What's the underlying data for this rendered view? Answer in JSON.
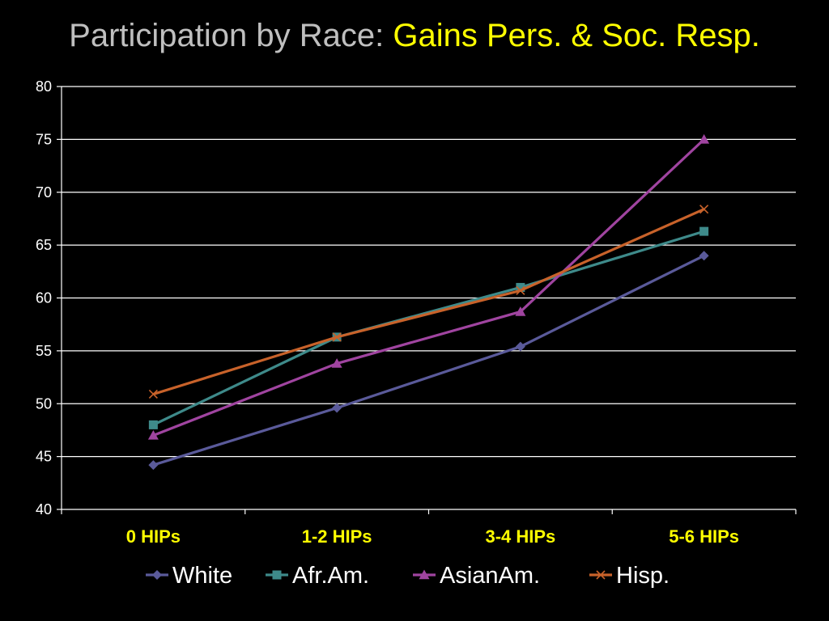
{
  "slide": {
    "title_main": "Participation by Race: ",
    "title_accent": "Gains Pers. & Soc. Resp."
  },
  "colors": {
    "background": "#000000",
    "title_main": "#bfbfbf",
    "title_accent": "#ffff00",
    "x_tick_labels": "#ffff00",
    "axis_text": "#ffffff",
    "gridlines": "#ffffff"
  },
  "chart_data": {
    "type": "line",
    "title": "Participation by Race: Gains Pers. & Soc. Resp.",
    "xlabel": "",
    "ylabel": "",
    "categories": [
      "0 HIPs",
      "1-2 HIPs",
      "3-4 HIPs",
      "5-6 HIPs"
    ],
    "ylim": [
      40,
      80
    ],
    "yticks": [
      40,
      45,
      50,
      55,
      60,
      65,
      70,
      75,
      80
    ],
    "grid": true,
    "legend_position": "bottom",
    "series": [
      {
        "name": "White",
        "values": [
          44.2,
          49.6,
          55.4,
          64.0
        ],
        "color": "#5a5a9a",
        "marker": "diamond"
      },
      {
        "name": "Afr.Am.",
        "values": [
          48.0,
          56.3,
          61.0,
          66.3
        ],
        "color": "#3e8a8a",
        "marker": "square"
      },
      {
        "name": "AsianAm.",
        "values": [
          47.0,
          53.8,
          58.7,
          75.0
        ],
        "color": "#a044a0",
        "marker": "triangle"
      },
      {
        "name": "Hisp.",
        "values": [
          50.9,
          56.3,
          60.7,
          68.4
        ],
        "color": "#c8622a",
        "marker": "x"
      }
    ]
  }
}
